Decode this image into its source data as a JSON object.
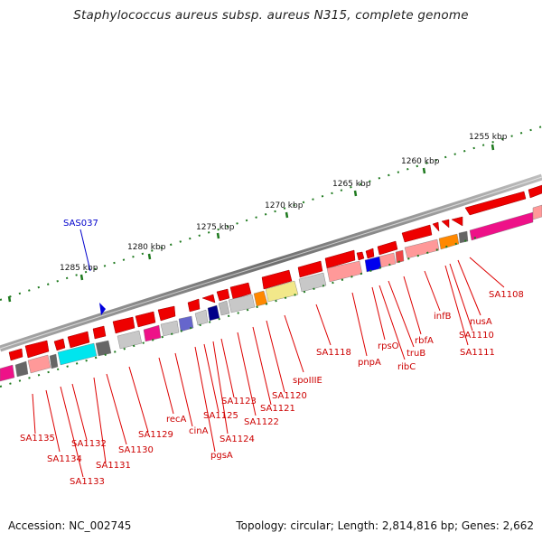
{
  "title": "Staphylococcus aureus subsp. aureus N315, complete genome",
  "footer": {
    "accession": "Accession: NC_002745",
    "topology": "Topology: circular; Length: 2,814,816 bp; Genes: 2,662"
  },
  "scale": {
    "ticks": [
      "1255 kbp",
      "1260 kbp",
      "1265 kbp",
      "1270 kbp",
      "1275 kbp",
      "1280 kbp",
      "1285 kbp"
    ],
    "track_color": "#1f7a1f"
  },
  "feature_callout": {
    "label": "SAS037",
    "color": "#0000cc"
  },
  "gene_labels": [
    "SA1108",
    "nusA",
    "SA1110",
    "SA1111",
    "infB",
    "rbfA",
    "truB",
    "rpsO",
    "ribC",
    "pnpA",
    "SA1118",
    "spoIIIE",
    "SA1120",
    "SA1121",
    "SA1122",
    "SA1123",
    "SA1124",
    "SA1125",
    "pgsA",
    "cinA",
    "recA",
    "SA1129",
    "SA1130",
    "SA1131",
    "SA1132",
    "SA1133",
    "SA1134",
    "SA1135"
  ],
  "colors": {
    "gene_fill": "#ee0000",
    "leader_line": "#dd0000",
    "label_text": "#cc0000",
    "backbone": "#888888"
  }
}
